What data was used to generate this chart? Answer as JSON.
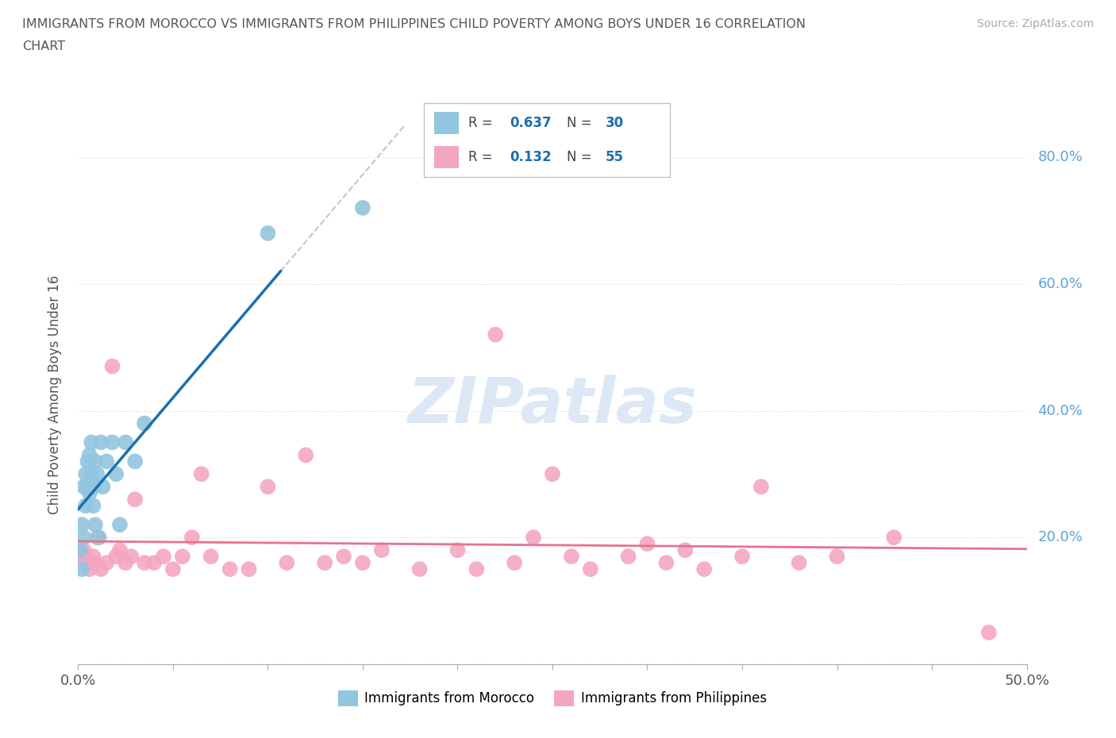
{
  "title_line1": "IMMIGRANTS FROM MOROCCO VS IMMIGRANTS FROM PHILIPPINES CHILD POVERTY AMONG BOYS UNDER 16 CORRELATION",
  "title_line2": "CHART",
  "source_text": "Source: ZipAtlas.com",
  "ylabel": "Child Poverty Among Boys Under 16",
  "xlim": [
    0.0,
    0.5
  ],
  "ylim": [
    0.0,
    0.85
  ],
  "xticks": [
    0.0,
    0.05,
    0.1,
    0.15,
    0.2,
    0.25,
    0.3,
    0.35,
    0.4,
    0.45,
    0.5
  ],
  "yticks": [
    0.0,
    0.2,
    0.4,
    0.6,
    0.8
  ],
  "morocco_R": 0.637,
  "morocco_N": 30,
  "philippines_R": 0.132,
  "philippines_N": 55,
  "morocco_color": "#92c5de",
  "philippines_color": "#f4a6c0",
  "morocco_line_color": "#1a6faf",
  "philippines_line_color": "#e8728a",
  "right_axis_color": "#5ba3d9",
  "watermark_color": "#dce8f5",
  "morocco_x": [
    0.001,
    0.002,
    0.002,
    0.003,
    0.003,
    0.004,
    0.004,
    0.005,
    0.005,
    0.006,
    0.006,
    0.007,
    0.007,
    0.008,
    0.008,
    0.009,
    0.009,
    0.01,
    0.011,
    0.012,
    0.013,
    0.015,
    0.018,
    0.02,
    0.022,
    0.025,
    0.03,
    0.035,
    0.1,
    0.15
  ],
  "morocco_y": [
    0.18,
    0.15,
    0.22,
    0.2,
    0.28,
    0.25,
    0.3,
    0.28,
    0.32,
    0.27,
    0.33,
    0.3,
    0.35,
    0.28,
    0.25,
    0.32,
    0.22,
    0.3,
    0.2,
    0.35,
    0.28,
    0.32,
    0.35,
    0.3,
    0.22,
    0.35,
    0.32,
    0.38,
    0.68,
    0.72
  ],
  "philippines_x": [
    0.001,
    0.002,
    0.003,
    0.004,
    0.005,
    0.006,
    0.007,
    0.008,
    0.009,
    0.01,
    0.012,
    0.015,
    0.018,
    0.02,
    0.022,
    0.025,
    0.028,
    0.03,
    0.035,
    0.04,
    0.045,
    0.05,
    0.055,
    0.06,
    0.065,
    0.07,
    0.08,
    0.09,
    0.1,
    0.11,
    0.12,
    0.13,
    0.14,
    0.15,
    0.16,
    0.18,
    0.2,
    0.21,
    0.22,
    0.23,
    0.24,
    0.25,
    0.26,
    0.27,
    0.29,
    0.3,
    0.31,
    0.32,
    0.33,
    0.35,
    0.36,
    0.38,
    0.4,
    0.43,
    0.48
  ],
  "philippines_y": [
    0.17,
    0.16,
    0.18,
    0.17,
    0.16,
    0.15,
    0.16,
    0.17,
    0.16,
    0.2,
    0.15,
    0.16,
    0.47,
    0.17,
    0.18,
    0.16,
    0.17,
    0.26,
    0.16,
    0.16,
    0.17,
    0.15,
    0.17,
    0.2,
    0.3,
    0.17,
    0.15,
    0.15,
    0.28,
    0.16,
    0.33,
    0.16,
    0.17,
    0.16,
    0.18,
    0.15,
    0.18,
    0.15,
    0.52,
    0.16,
    0.2,
    0.3,
    0.17,
    0.15,
    0.17,
    0.19,
    0.16,
    0.18,
    0.15,
    0.17,
    0.28,
    0.16,
    0.17,
    0.2,
    0.05
  ]
}
